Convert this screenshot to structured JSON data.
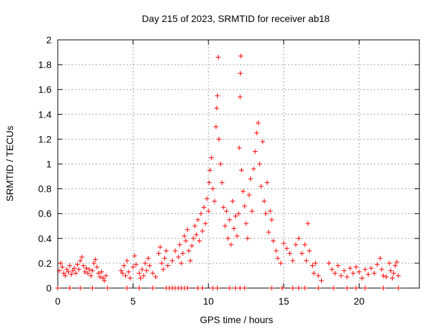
{
  "chart_data": {
    "type": "scatter",
    "title": "Day 215 of 2023, SRMTID for receiver ab18",
    "xlabel": "GPS time / hours",
    "ylabel": "SRMTID / TECUs",
    "xlim": [
      0,
      24
    ],
    "ylim": [
      0,
      2
    ],
    "xticks": [
      0,
      5,
      10,
      15,
      20
    ],
    "yticks": [
      0,
      0.2,
      0.4,
      0.6,
      0.8,
      1,
      1.2,
      1.4,
      1.6,
      1.8,
      2
    ],
    "xtick_labels": [
      "0",
      "5",
      "10",
      "15",
      "20"
    ],
    "ytick_labels": [
      "0",
      "0.2",
      "0.4",
      "0.6",
      "0.8",
      "1",
      "1.2",
      "1.4",
      "1.6",
      "1.8",
      "2"
    ],
    "grid": true,
    "marker": "+",
    "color": "#ff0000",
    "series": [
      {
        "name": "SRMTID",
        "points": [
          [
            0.1,
            0.14
          ],
          [
            0.2,
            0.2
          ],
          [
            0.3,
            0.17
          ],
          [
            0.4,
            0.12
          ],
          [
            0.5,
            0.1
          ],
          [
            0.6,
            0.15
          ],
          [
            0.7,
            0.13
          ],
          [
            0.8,
            0.18
          ],
          [
            0.9,
            0.11
          ],
          [
            1.0,
            0.14
          ],
          [
            1.1,
            0.16
          ],
          [
            1.2,
            0.12
          ],
          [
            1.3,
            0.19
          ],
          [
            1.4,
            0.15
          ],
          [
            1.5,
            0.22
          ],
          [
            1.6,
            0.25
          ],
          [
            1.7,
            0.18
          ],
          [
            1.8,
            0.13
          ],
          [
            1.9,
            0.16
          ],
          [
            2.0,
            0.12
          ],
          [
            2.1,
            0.15
          ],
          [
            2.2,
            0.1
          ],
          [
            2.3,
            0.14
          ],
          [
            2.4,
            0.2
          ],
          [
            2.5,
            0.23
          ],
          [
            2.6,
            0.17
          ],
          [
            2.7,
            0.12
          ],
          [
            2.8,
            0.09
          ],
          [
            2.9,
            0.13
          ],
          [
            3.0,
            0.08
          ],
          [
            3.1,
            0.06
          ],
          [
            3.2,
            0.1
          ],
          [
            4.2,
            0.14
          ],
          [
            4.3,
            0.12
          ],
          [
            4.4,
            0.18
          ],
          [
            4.5,
            0.1
          ],
          [
            4.6,
            0.22
          ],
          [
            4.7,
            0.13
          ],
          [
            4.8,
            0.08
          ],
          [
            5.0,
            0.17
          ],
          [
            5.1,
            0.26
          ],
          [
            5.2,
            0.19
          ],
          [
            5.4,
            0.12
          ],
          [
            5.5,
            0.08
          ],
          [
            5.6,
            0.15
          ],
          [
            5.7,
            0.1
          ],
          [
            5.8,
            0.2
          ],
          [
            5.9,
            0.14
          ],
          [
            6.0,
            0.24
          ],
          [
            6.1,
            0.18
          ],
          [
            6.3,
            0.12
          ],
          [
            6.5,
            0.09
          ],
          [
            6.7,
            0.28
          ],
          [
            6.8,
            0.33
          ],
          [
            6.9,
            0.2
          ],
          [
            7.0,
            0.15
          ],
          [
            7.1,
            0.24
          ],
          [
            7.2,
            0.3
          ],
          [
            7.3,
            0.18
          ],
          [
            7.6,
            0.22
          ],
          [
            7.8,
            0.3
          ],
          [
            8.0,
            0.25
          ],
          [
            8.1,
            0.35
          ],
          [
            8.2,
            0.2
          ],
          [
            8.3,
            0.28
          ],
          [
            8.4,
            0.42
          ],
          [
            8.5,
            0.38
          ],
          [
            8.6,
            0.47
          ],
          [
            8.7,
            0.3
          ],
          [
            8.8,
            0.22
          ],
          [
            8.9,
            0.34
          ],
          [
            9.0,
            0.4
          ],
          [
            9.1,
            0.5
          ],
          [
            9.2,
            0.43
          ],
          [
            9.3,
            0.55
          ],
          [
            9.4,
            0.38
          ],
          [
            9.5,
            0.6
          ],
          [
            9.6,
            0.46
          ],
          [
            9.7,
            0.65
          ],
          [
            9.8,
            0.52
          ],
          [
            9.9,
            0.72
          ],
          [
            10.0,
            0.62
          ],
          [
            10.05,
            0.85
          ],
          [
            10.1,
            0.95
          ],
          [
            10.2,
            1.05
          ],
          [
            10.3,
            0.8
          ],
          [
            10.4,
            0.7
          ],
          [
            10.5,
            1.3
          ],
          [
            10.55,
            1.45
          ],
          [
            10.6,
            1.55
          ],
          [
            10.65,
            1.86
          ],
          [
            10.7,
            1.2
          ],
          [
            10.8,
            1.0
          ],
          [
            10.9,
            0.85
          ],
          [
            11.0,
            0.65
          ],
          [
            11.1,
            0.5
          ],
          [
            11.2,
            0.62
          ],
          [
            11.3,
            0.4
          ],
          [
            11.4,
            0.55
          ],
          [
            11.5,
            0.35
          ],
          [
            11.6,
            0.7
          ],
          [
            11.7,
            0.48
          ],
          [
            11.8,
            0.58
          ],
          [
            11.9,
            0.42
          ],
          [
            12.0,
            0.6
          ],
          [
            12.05,
            1.13
          ],
          [
            12.1,
            1.54
          ],
          [
            12.12,
            1.73
          ],
          [
            12.15,
            1.87
          ],
          [
            12.2,
            0.95
          ],
          [
            12.3,
            0.78
          ],
          [
            12.4,
            0.66
          ],
          [
            12.5,
            0.52
          ],
          [
            12.6,
            0.4
          ],
          [
            12.7,
            0.75
          ],
          [
            12.8,
            0.88
          ],
          [
            12.9,
            0.62
          ],
          [
            13.0,
            0.96
          ],
          [
            13.1,
            1.1
          ],
          [
            13.2,
            1.25
          ],
          [
            13.3,
            1.33
          ],
          [
            13.4,
            1.0
          ],
          [
            13.5,
            0.82
          ],
          [
            13.6,
            1.18
          ],
          [
            13.7,
            0.7
          ],
          [
            13.8,
            0.6
          ],
          [
            13.9,
            0.85
          ],
          [
            14.0,
            0.45
          ],
          [
            14.1,
            0.62
          ],
          [
            14.2,
            0.55
          ],
          [
            14.3,
            0.38
          ],
          [
            14.5,
            0.3
          ],
          [
            14.6,
            0.24
          ],
          [
            14.8,
            0.2
          ],
          [
            15.0,
            0.36
          ],
          [
            15.2,
            0.32
          ],
          [
            15.4,
            0.28
          ],
          [
            15.6,
            0.22
          ],
          [
            15.8,
            0.35
          ],
          [
            16.0,
            0.4
          ],
          [
            16.2,
            0.28
          ],
          [
            16.4,
            0.35
          ],
          [
            16.5,
            0.22
          ],
          [
            16.6,
            0.52
          ],
          [
            16.7,
            0.3
          ],
          [
            16.9,
            0.18
          ],
          [
            17.0,
            0.12
          ],
          [
            17.1,
            0.2
          ],
          [
            17.3,
            0.1
          ],
          [
            17.5,
            0.06
          ],
          [
            18.0,
            0.2
          ],
          [
            18.2,
            0.15
          ],
          [
            18.4,
            0.12
          ],
          [
            18.6,
            0.18
          ],
          [
            18.8,
            0.1
          ],
          [
            19.0,
            0.14
          ],
          [
            19.2,
            0.09
          ],
          [
            19.4,
            0.16
          ],
          [
            19.6,
            0.12
          ],
          [
            19.8,
            0.17
          ],
          [
            20.0,
            0.13
          ],
          [
            20.2,
            0.08
          ],
          [
            20.4,
            0.15
          ],
          [
            20.6,
            0.11
          ],
          [
            20.8,
            0.16
          ],
          [
            21.0,
            0.12
          ],
          [
            21.2,
            0.19
          ],
          [
            21.4,
            0.24
          ],
          [
            21.5,
            0.15
          ],
          [
            21.6,
            0.1
          ],
          [
            21.8,
            0.09
          ],
          [
            22.0,
            0.2
          ],
          [
            22.1,
            0.14
          ],
          [
            22.2,
            0.08
          ],
          [
            22.3,
            0.12
          ],
          [
            22.4,
            0.18
          ],
          [
            22.5,
            0.21
          ],
          [
            22.6,
            0.1
          ]
        ],
        "zero_markers_x": [
          0.0,
          0.8,
          1.5,
          2.3,
          3.3,
          4.6,
          5.4,
          6.3,
          7.2,
          7.4,
          7.6,
          7.8,
          8.0,
          8.2,
          8.4,
          8.6,
          9.3,
          9.6,
          10.3,
          10.6,
          11.4,
          11.8,
          12.1,
          12.4,
          14.2,
          14.9,
          15.6,
          16.0,
          16.4,
          17.3,
          18.3,
          19.2,
          19.8,
          20.4,
          21.6,
          22.6
        ]
      }
    ]
  }
}
